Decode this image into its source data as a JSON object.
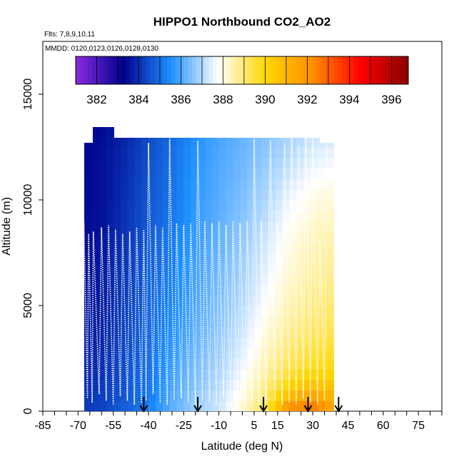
{
  "chart_data": {
    "type": "heatmap",
    "title": "HIPPO1 Northbound CO2_AO2",
    "flights_note": "Flts: 7,8,9,10,11",
    "dates_note": "MMDD: 0120,0123,0126,0128,0130",
    "xlabel": "Latitude (deg N)",
    "ylabel": "Altitude (m)",
    "xlim": [
      -85,
      85
    ],
    "ylim": [
      0,
      17500
    ],
    "x_tick_labels": [
      "-85",
      "-70",
      "-55",
      "-40",
      "-25",
      "-10",
      "5",
      "15",
      "30",
      "45",
      "60",
      "75"
    ],
    "x_tick_values": [
      -85,
      -70,
      -55,
      -40,
      -25,
      -10,
      5,
      15,
      30,
      45,
      60,
      75
    ],
    "y_tick_labels": [
      "0",
      "5000",
      "10000",
      "15000"
    ],
    "y_tick_values": [
      0,
      5000,
      10000,
      15000
    ],
    "colorbar": {
      "range": [
        381,
        396.8
      ],
      "tick_labels": [
        "382",
        "384",
        "386",
        "388",
        "390",
        "392",
        "394",
        "396"
      ],
      "tick_values": [
        382,
        384,
        386,
        388,
        390,
        392,
        394,
        396
      ],
      "colors": [
        "#8a2be2",
        "#00008b",
        "#1e90ff",
        "#ffffff",
        "#ffd700",
        "#ff8c00",
        "#ff0000",
        "#8b0000"
      ]
    },
    "field_samples_latitude": [
      -68,
      -60,
      -50,
      -40,
      -30,
      -20,
      -10,
      0,
      10,
      20,
      30,
      37
    ],
    "field_samples_altitude": [
      0,
      1000,
      2000,
      4000,
      6000,
      8000,
      10000,
      12000,
      13500
    ],
    "field_co2_ppm": [
      [
        384.2,
        384.3,
        384.8,
        385.3,
        386.2,
        386.8,
        387.3,
        388.2,
        389.3,
        392.5,
        393.0,
        391.8
      ],
      [
        384.0,
        384.2,
        384.6,
        385.1,
        386.0,
        386.6,
        387.1,
        387.9,
        388.9,
        390.3,
        391.0,
        390.8
      ],
      [
        383.8,
        384.0,
        384.5,
        385.0,
        385.8,
        386.4,
        386.9,
        387.6,
        388.5,
        389.4,
        389.8,
        389.9
      ],
      [
        383.6,
        383.8,
        384.3,
        384.9,
        385.5,
        386.1,
        386.6,
        387.2,
        388.0,
        388.7,
        389.1,
        389.2
      ],
      [
        383.5,
        383.7,
        384.2,
        384.8,
        385.3,
        385.9,
        386.4,
        386.9,
        387.6,
        388.3,
        388.7,
        388.8
      ],
      [
        383.4,
        383.6,
        384.1,
        384.7,
        385.2,
        385.8,
        386.2,
        386.7,
        387.3,
        388.0,
        388.4,
        388.5
      ],
      [
        383.4,
        383.5,
        384.0,
        384.6,
        385.1,
        385.7,
        386.1,
        386.5,
        387.0,
        387.6,
        388.0,
        388.1
      ],
      [
        383.3,
        383.5,
        383.9,
        384.5,
        385.0,
        385.6,
        386.0,
        386.3,
        386.7,
        387.1,
        387.5,
        387.6
      ],
      [
        383.3,
        383.4,
        383.8,
        384.4,
        384.9,
        385.5,
        385.9,
        386.2,
        386.5,
        386.8,
        387.1,
        387.2
      ]
    ],
    "flight_track_latitude": [
      -68,
      -67.5,
      -66,
      -65.5,
      -64,
      -63.5,
      -61,
      -60,
      -58,
      -57,
      -55,
      -54,
      -52,
      -51,
      -49,
      -48,
      -46,
      -45,
      -43,
      -42,
      -41,
      -40,
      -38,
      -37,
      -35,
      -34,
      -32,
      -31,
      -29,
      -28,
      -26,
      -25,
      -23,
      -22,
      -20,
      -19,
      -17,
      -16,
      -14,
      -13,
      -11,
      -10,
      -8,
      -7,
      -5,
      -4,
      -2,
      -1,
      1,
      2,
      4,
      5,
      7,
      8,
      10,
      12,
      14,
      15,
      17,
      18,
      20,
      21,
      23,
      24,
      26,
      27,
      29,
      30,
      32,
      33,
      35,
      36
    ],
    "flight_track_altitude_m": [
      300,
      9000,
      600,
      8400,
      400,
      8500,
      800,
      8700,
      500,
      8800,
      300,
      8600,
      700,
      8400,
      500,
      8500,
      300,
      8700,
      400,
      8600,
      500,
      12700,
      800,
      8800,
      400,
      8700,
      300,
      12900,
      500,
      8900,
      600,
      8800,
      400,
      8900,
      300,
      12800,
      500,
      9000,
      400,
      8900,
      300,
      9000,
      600,
      8800,
      300,
      9000,
      400,
      8900,
      300,
      9000,
      500,
      12900,
      300,
      9000,
      400,
      12800,
      500,
      8900,
      300,
      12700,
      400,
      13300,
      300,
      12600,
      600,
      13300,
      400,
      12900,
      300,
      8200,
      500,
      13000
    ],
    "profile_markers_latitude": [
      -42,
      -19,
      9,
      28,
      41
    ]
  }
}
